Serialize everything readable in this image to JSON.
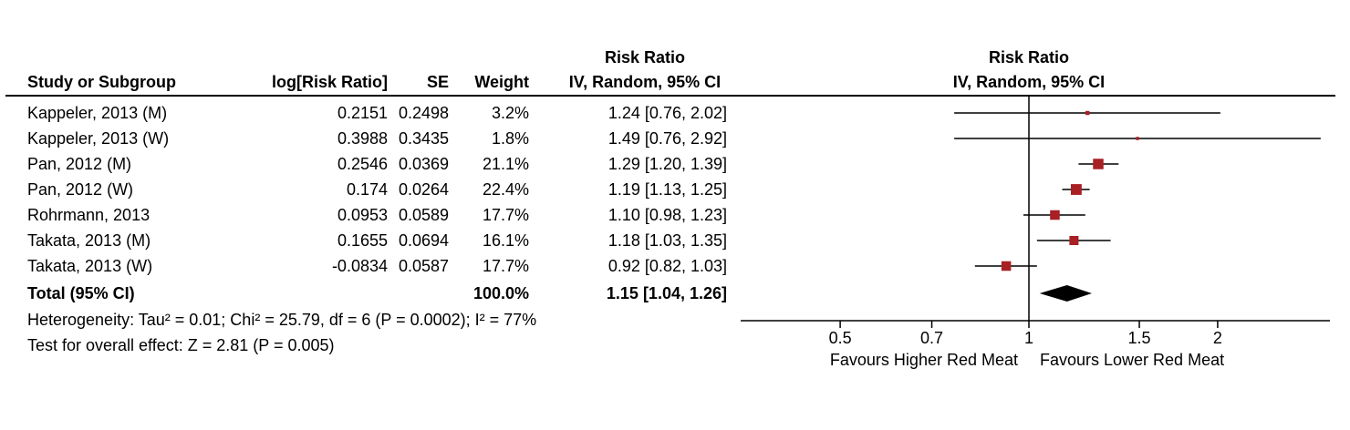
{
  "table": {
    "header": {
      "col_study": "Study or Subgroup",
      "col_log_rr": "log[Risk Ratio]",
      "col_se": "SE",
      "col_weight": "Weight",
      "col_effect_line1": "Risk Ratio",
      "col_effect_line2": "IV, Random, 95% CI",
      "col_plot_line1": "Risk Ratio",
      "col_plot_line2": "IV, Random, 95% CI"
    },
    "rows": [
      {
        "study": "Kappeler, 2013 (M)",
        "log_rr": "0.2151",
        "se": "0.2498",
        "weight": "3.2%",
        "ci_text": "1.24 [0.76, 2.02]"
      },
      {
        "study": "Kappeler, 2013 (W)",
        "log_rr": "0.3988",
        "se": "0.3435",
        "weight": "1.8%",
        "ci_text": "1.49 [0.76, 2.92]"
      },
      {
        "study": "Pan, 2012 (M)",
        "log_rr": "0.2546",
        "se": "0.0369",
        "weight": "21.1%",
        "ci_text": "1.29 [1.20, 1.39]"
      },
      {
        "study": "Pan, 2012 (W)",
        "log_rr": "0.174",
        "se": "0.0264",
        "weight": "22.4%",
        "ci_text": "1.19 [1.13, 1.25]"
      },
      {
        "study": "Rohrmann, 2013",
        "log_rr": "0.0953",
        "se": "0.0589",
        "weight": "17.7%",
        "ci_text": "1.10 [0.98, 1.23]"
      },
      {
        "study": "Takata, 2013 (M)",
        "log_rr": "0.1655",
        "se": "0.0694",
        "weight": "16.1%",
        "ci_text": "1.18 [1.03, 1.35]"
      },
      {
        "study": "Takata, 2013 (W)",
        "log_rr": "-0.0834",
        "se": "0.0587",
        "weight": "17.7%",
        "ci_text": "0.92 [0.82, 1.03]"
      }
    ],
    "total": {
      "label": "Total (95% CI)",
      "weight": "100.0%",
      "ci_text": "1.15 [1.04, 1.26]"
    }
  },
  "footer": {
    "heterogeneity": "Heterogeneity: Tau² = 0.01; Chi² = 25.79, df = 6 (P = 0.0002); I² = 77%",
    "overall_effect": "Test for overall effect: Z = 2.81 (P = 0.005)"
  },
  "chart_data": {
    "type": "scatter",
    "subtype": "forest-plot",
    "title": "Risk Ratio",
    "axis_label": "IV, Random, 95% CI",
    "x_scale": "log",
    "x_ticks": [
      0.5,
      0.7,
      1,
      1.5,
      2
    ],
    "x_axis_range": [
      0.35,
      3.05
    ],
    "null_value": 1,
    "favours_left": "Favours Higher Red Meat",
    "favours_right": "Favours Lower Red Meat",
    "marker_color": "#a81f24",
    "studies": [
      {
        "name": "Kappeler, 2013 (M)",
        "rr": 1.24,
        "low": 0.76,
        "high": 2.02,
        "weight": 3.2
      },
      {
        "name": "Kappeler, 2013 (W)",
        "rr": 1.49,
        "low": 0.76,
        "high": 2.92,
        "weight": 1.8
      },
      {
        "name": "Pan, 2012 (M)",
        "rr": 1.29,
        "low": 1.2,
        "high": 1.39,
        "weight": 21.1
      },
      {
        "name": "Pan, 2012 (W)",
        "rr": 1.19,
        "low": 1.13,
        "high": 1.25,
        "weight": 22.4
      },
      {
        "name": "Rohrmann, 2013",
        "rr": 1.1,
        "low": 0.98,
        "high": 1.23,
        "weight": 17.7
      },
      {
        "name": "Takata, 2013 (M)",
        "rr": 1.18,
        "low": 1.03,
        "high": 1.35,
        "weight": 16.1
      },
      {
        "name": "Takata, 2013 (W)",
        "rr": 0.92,
        "low": 0.82,
        "high": 1.03,
        "weight": 17.7
      }
    ],
    "total": {
      "name": "Total (95% CI)",
      "rr": 1.15,
      "low": 1.04,
      "high": 1.26,
      "weight": 100.0
    }
  }
}
